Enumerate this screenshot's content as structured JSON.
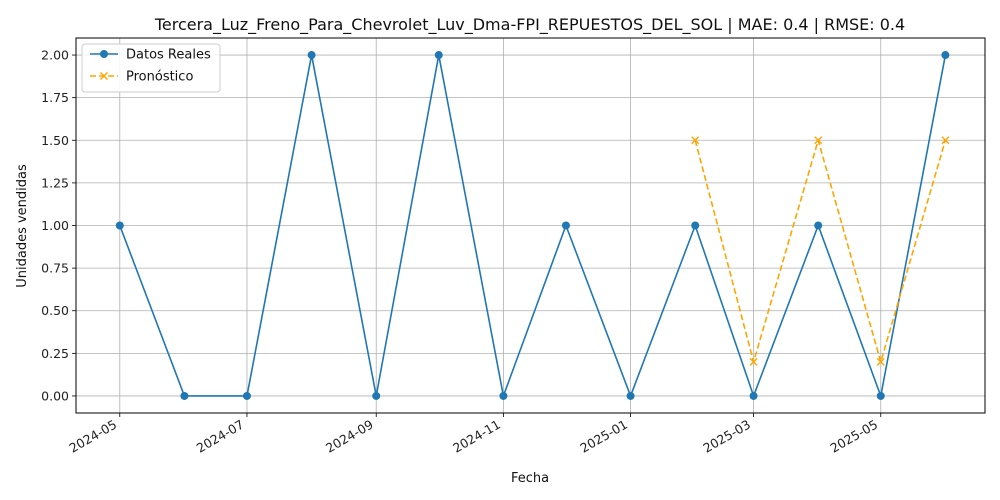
{
  "chart_data": {
    "type": "line",
    "title": "Tercera_Luz_Freno_Para_Chevrolet_Luv_Dma-FPI_REPUESTOS_DEL_SOL | MAE: 0.4 | RMSE: 0.4",
    "xlabel": "Fecha",
    "ylabel": "Unidades vendidas",
    "xlim": [
      "2024-04-10",
      "2025-06-20"
    ],
    "ylim": [
      -0.1,
      2.1
    ],
    "grid": true,
    "legend_position": "top-left",
    "x_ticks": [
      "2024-05",
      "2024-07",
      "2024-09",
      "2024-11",
      "2025-01",
      "2025-03",
      "2025-05"
    ],
    "y_ticks": [
      "0.00",
      "0.25",
      "0.50",
      "0.75",
      "1.00",
      "1.25",
      "1.50",
      "1.75",
      "2.00"
    ],
    "series": [
      {
        "name": "Datos Reales",
        "color": "#1f77b4",
        "line_style": "solid",
        "marker": "circle",
        "points": [
          {
            "x": "2024-05-01",
            "y": 1
          },
          {
            "x": "2024-06-01",
            "y": 0
          },
          {
            "x": "2024-07-01",
            "y": 0
          },
          {
            "x": "2024-08-01",
            "y": 2
          },
          {
            "x": "2024-09-01",
            "y": 0
          },
          {
            "x": "2024-10-01",
            "y": 2
          },
          {
            "x": "2024-11-01",
            "y": 0
          },
          {
            "x": "2024-12-01",
            "y": 1
          },
          {
            "x": "2025-01-01",
            "y": 0
          },
          {
            "x": "2025-02-01",
            "y": 1
          },
          {
            "x": "2025-03-01",
            "y": 0
          },
          {
            "x": "2025-04-01",
            "y": 1
          },
          {
            "x": "2025-05-01",
            "y": 0
          },
          {
            "x": "2025-06-01",
            "y": 2
          }
        ]
      },
      {
        "name": "Pronóstico",
        "color": "#ffa500",
        "line_style": "dashed",
        "marker": "x",
        "points": [
          {
            "x": "2025-02-01",
            "y": 1.5
          },
          {
            "x": "2025-03-01",
            "y": 0.2
          },
          {
            "x": "2025-04-01",
            "y": 1.5
          },
          {
            "x": "2025-05-01",
            "y": 0.2
          },
          {
            "x": "2025-06-01",
            "y": 1.5
          }
        ]
      }
    ]
  }
}
